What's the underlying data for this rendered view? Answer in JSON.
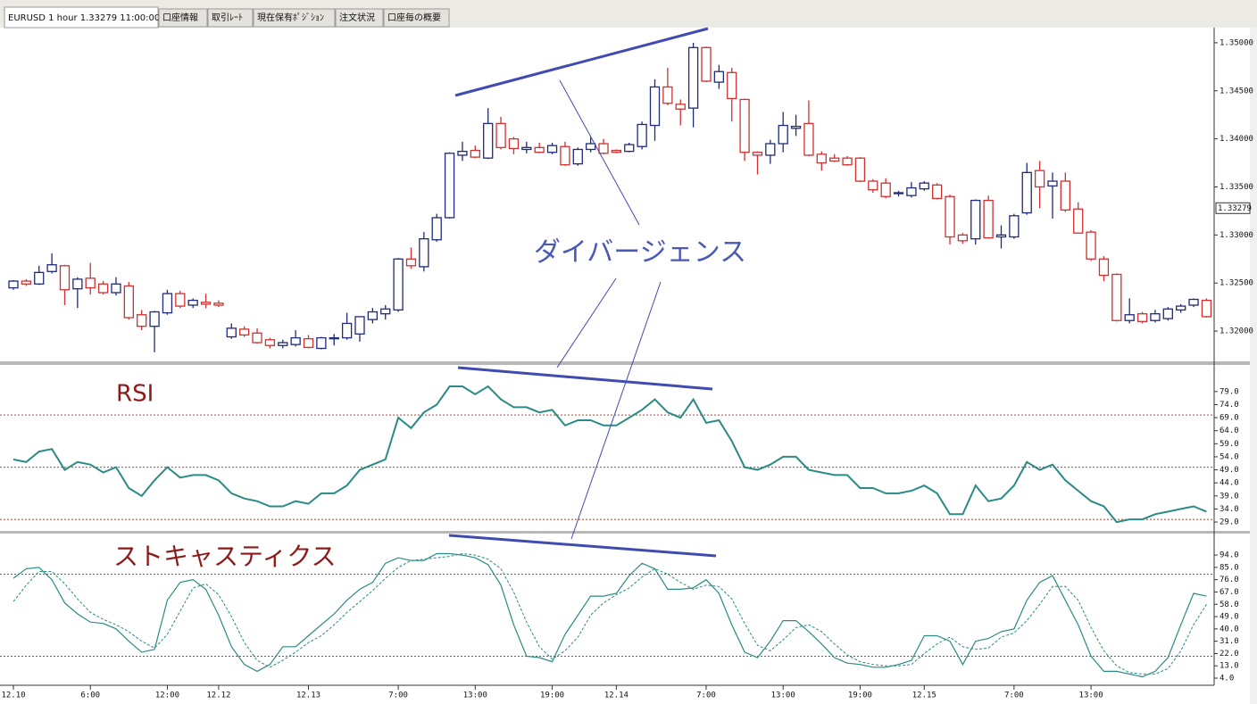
{
  "tabs": [
    "EURUSD 1 hour 1.33279 11:00:00",
    "口座情報",
    "取引ﾚｰﾄ",
    "現在保有ﾎﾟｼﾞｼｮﾝ",
    "注文状況",
    "口座毎の概要"
  ],
  "chart_data": [
    {
      "type": "candlestick",
      "annotation": "ダイバージェンス",
      "up_color": "#1f2a7a",
      "down_color": "#d03030",
      "last_price": 1.33279,
      "ylim": [
        1.31685,
        1.35157
      ],
      "yticks": [
        {
          "value": 1.35,
          "label": "1.35000"
        },
        {
          "value": 1.345,
          "label": "1.34500"
        },
        {
          "value": 1.34,
          "label": "1.34000"
        },
        {
          "value": 1.335,
          "label": "1.33500"
        },
        {
          "value": 1.33,
          "label": "1.33000"
        },
        {
          "value": 1.325,
          "label": "1.32500"
        },
        {
          "value": 1.32,
          "label": "1.32000"
        }
      ],
      "open": [
        1.3245,
        1.3252,
        1.3249,
        1.3262,
        1.3268,
        1.3244,
        1.3255,
        1.3249,
        1.324,
        1.3247,
        1.3217,
        1.3205,
        1.3219,
        1.3239,
        1.3227,
        1.323,
        1.3229,
        1.3194,
        1.3202,
        1.3198,
        1.3191,
        1.3185,
        1.3186,
        1.3192,
        1.3182,
        1.3192,
        1.3193,
        1.3197,
        1.3212,
        1.3218,
        1.3222,
        1.3275,
        1.3267,
        1.3295,
        1.3318,
        1.3383,
        1.3388,
        1.338,
        1.3416,
        1.34,
        1.3389,
        1.3391,
        1.3386,
        1.3392,
        1.3374,
        1.3389,
        1.3395,
        1.3388,
        1.3387,
        1.3392,
        1.3414,
        1.3454,
        1.3436,
        1.3432,
        1.3495,
        1.3459,
        1.3469,
        1.3441,
        1.3386,
        1.3383,
        1.3395,
        1.3411,
        1.3416,
        1.3384,
        1.338,
        1.338,
        1.338,
        1.3356,
        1.3354,
        1.3343,
        1.3341,
        1.3348,
        1.3352,
        1.334,
        1.33,
        1.3296,
        1.3336,
        1.3298,
        1.3298,
        1.3323,
        1.3367,
        1.3351,
        1.3356,
        1.3327,
        1.3303,
        1.3275,
        1.3259,
        1.3211,
        1.3218,
        1.3211,
        1.3213,
        1.3222,
        1.3227,
        1.3232
      ],
      "high": [
        1.3253,
        1.3254,
        1.3268,
        1.3281,
        1.3269,
        1.3256,
        1.3271,
        1.3252,
        1.3256,
        1.3251,
        1.3222,
        1.3221,
        1.3243,
        1.3242,
        1.3234,
        1.3239,
        1.3232,
        1.3208,
        1.3205,
        1.3203,
        1.3193,
        1.3191,
        1.3201,
        1.3196,
        1.3194,
        1.3197,
        1.3219,
        1.3215,
        1.3224,
        1.3227,
        1.3276,
        1.3287,
        1.3303,
        1.3322,
        1.3386,
        1.3397,
        1.3393,
        1.3432,
        1.3423,
        1.3402,
        1.3397,
        1.3396,
        1.3396,
        1.3397,
        1.3391,
        1.3402,
        1.34,
        1.3389,
        1.3396,
        1.3418,
        1.3462,
        1.3474,
        1.3441,
        1.35,
        1.3496,
        1.3477,
        1.3474,
        1.3442,
        1.3387,
        1.3399,
        1.3428,
        1.3425,
        1.344,
        1.3387,
        1.3384,
        1.3382,
        1.3381,
        1.3358,
        1.3359,
        1.3346,
        1.3355,
        1.3356,
        1.3354,
        1.3342,
        1.3302,
        1.3337,
        1.3341,
        1.331,
        1.3322,
        1.3375,
        1.3377,
        1.3365,
        1.3365,
        1.3334,
        1.3305,
        1.3278,
        1.326,
        1.3234,
        1.322,
        1.3222,
        1.3225,
        1.3228,
        1.3234,
        1.3234
      ],
      "low": [
        1.3243,
        1.3247,
        1.3248,
        1.326,
        1.3227,
        1.3224,
        1.3238,
        1.3238,
        1.3237,
        1.3212,
        1.3201,
        1.3178,
        1.3217,
        1.3224,
        1.3224,
        1.3224,
        1.3225,
        1.3192,
        1.3194,
        1.3187,
        1.3182,
        1.3182,
        1.3184,
        1.3182,
        1.3181,
        1.3185,
        1.3191,
        1.3189,
        1.3208,
        1.3212,
        1.322,
        1.3265,
        1.3262,
        1.3293,
        1.3317,
        1.3377,
        1.338,
        1.3379,
        1.3389,
        1.3384,
        1.3385,
        1.3385,
        1.3384,
        1.3372,
        1.3372,
        1.3386,
        1.3384,
        1.3385,
        1.3386,
        1.3389,
        1.3398,
        1.3435,
        1.3414,
        1.3412,
        1.3459,
        1.3452,
        1.3418,
        1.3377,
        1.3363,
        1.3374,
        1.3386,
        1.3403,
        1.3382,
        1.3367,
        1.3376,
        1.3372,
        1.3355,
        1.3344,
        1.3338,
        1.334,
        1.3339,
        1.3346,
        1.3337,
        1.329,
        1.3291,
        1.329,
        1.3296,
        1.3286,
        1.3296,
        1.3321,
        1.3328,
        1.3317,
        1.3324,
        1.3302,
        1.3273,
        1.3252,
        1.321,
        1.3208,
        1.3208,
        1.3209,
        1.3211,
        1.3219,
        1.3225,
        1.3214
      ],
      "close": [
        1.3252,
        1.3249,
        1.3261,
        1.3269,
        1.3243,
        1.3254,
        1.3245,
        1.324,
        1.3249,
        1.3214,
        1.3205,
        1.322,
        1.3239,
        1.3226,
        1.3232,
        1.3228,
        1.3227,
        1.3203,
        1.3196,
        1.3188,
        1.3185,
        1.3188,
        1.3193,
        1.3183,
        1.3193,
        1.3193,
        1.3208,
        1.3215,
        1.322,
        1.3223,
        1.3275,
        1.3268,
        1.3296,
        1.3318,
        1.3385,
        1.3387,
        1.3381,
        1.3416,
        1.3391,
        1.339,
        1.3391,
        1.3386,
        1.3393,
        1.3373,
        1.3389,
        1.3395,
        1.3385,
        1.3386,
        1.3394,
        1.3415,
        1.3454,
        1.3437,
        1.3431,
        1.3495,
        1.346,
        1.347,
        1.3442,
        1.3386,
        1.3383,
        1.3395,
        1.3414,
        1.3413,
        1.3383,
        1.3375,
        1.3377,
        1.3373,
        1.3356,
        1.3347,
        1.334,
        1.3344,
        1.3349,
        1.3354,
        1.3338,
        1.3298,
        1.3294,
        1.3336,
        1.3297,
        1.33,
        1.332,
        1.3365,
        1.335,
        1.3356,
        1.3326,
        1.3302,
        1.3275,
        1.3258,
        1.3211,
        1.3217,
        1.321,
        1.3218,
        1.3223,
        1.3226,
        1.3233,
        1.3215
      ]
    },
    {
      "type": "line",
      "title": "RSI",
      "ylim": [
        25.6,
        89.2
      ],
      "levels": [
        70,
        50,
        30
      ],
      "level_color": "#c0392b",
      "yticks": [
        {
          "value": 79,
          "label": "79.0"
        },
        {
          "value": 74,
          "label": "74.0"
        },
        {
          "value": 69,
          "label": "69.0"
        },
        {
          "value": 64,
          "label": "64.0"
        },
        {
          "value": 59,
          "label": "59.0"
        },
        {
          "value": 54,
          "label": "54.0"
        },
        {
          "value": 49,
          "label": "49.0"
        },
        {
          "value": 44,
          "label": "44.0"
        },
        {
          "value": 39,
          "label": "39.0"
        },
        {
          "value": 34,
          "label": "34.0"
        },
        {
          "value": 29,
          "label": "29.0"
        }
      ],
      "series": [
        {
          "color": "#2a8a84",
          "width": 2,
          "dashed": false,
          "values": [
            53,
            52,
            56,
            57,
            49,
            52,
            51,
            48,
            50,
            42,
            39,
            45,
            50,
            46,
            47,
            47,
            45,
            40,
            38,
            37,
            35,
            35,
            37,
            36,
            40,
            40,
            43,
            49,
            51,
            53,
            69,
            65,
            71,
            74,
            81,
            81,
            78,
            81,
            76,
            73,
            73,
            71,
            72,
            66,
            68,
            68,
            66,
            66,
            69,
            72,
            76,
            71,
            69,
            76,
            67,
            68,
            60,
            50,
            49,
            51,
            54,
            54,
            49,
            48,
            47,
            47,
            42,
            42,
            40,
            40,
            41,
            43,
            40,
            32,
            32,
            43,
            37,
            38,
            43,
            52,
            49,
            51,
            45,
            41,
            37,
            35,
            29,
            30,
            30,
            32,
            33,
            34,
            35,
            33
          ]
        }
      ]
    },
    {
      "type": "line",
      "title": "ストキャスティクス",
      "ylim": [
        -1.2,
        109.7
      ],
      "levels": [
        80,
        20
      ],
      "level_color": "#c0392b",
      "yticks": [
        {
          "value": 94,
          "label": "94.0"
        },
        {
          "value": 85,
          "label": "85.0"
        },
        {
          "value": 76,
          "label": "76.0"
        },
        {
          "value": 67,
          "label": "67.0"
        },
        {
          "value": 58,
          "label": "58.0"
        },
        {
          "value": 49,
          "label": "49.0"
        },
        {
          "value": 40,
          "label": "40.0"
        },
        {
          "value": 31,
          "label": "31.0"
        },
        {
          "value": 22,
          "label": "22.0"
        },
        {
          "value": 13,
          "label": "13.0"
        },
        {
          "value": 4,
          "label": "4.0"
        }
      ],
      "categories": [
        "12.10",
        null,
        null,
        null,
        null,
        null,
        "6:00",
        null,
        null,
        null,
        null,
        null,
        "12:00",
        null,
        null,
        null,
        "12.12",
        null,
        null,
        null,
        null,
        null,
        null,
        "12.13",
        null,
        null,
        null,
        null,
        null,
        null,
        "7:00",
        null,
        null,
        null,
        null,
        null,
        "13:00",
        null,
        null,
        null,
        null,
        null,
        "19:00",
        null,
        null,
        null,
        null,
        "12.14",
        null,
        null,
        null,
        null,
        null,
        null,
        "7:00",
        null,
        null,
        null,
        null,
        null,
        "13:00",
        null,
        null,
        null,
        null,
        null,
        "19:00",
        null,
        null,
        null,
        null,
        "12.15",
        null,
        null,
        null,
        null,
        null,
        null,
        "7:00",
        null,
        null,
        null,
        null,
        null,
        "13:00",
        null,
        null,
        null,
        null,
        null,
        null,
        null,
        null,
        null
      ],
      "series": [
        {
          "color": "#2a8a84",
          "width": 1.2,
          "dashed": false,
          "values": [
            77,
            84,
            85,
            76,
            59,
            51,
            45,
            44,
            40,
            31,
            23,
            25,
            61,
            74,
            76,
            69,
            50,
            27,
            14,
            9,
            14,
            27,
            27,
            35,
            43,
            51,
            61,
            69,
            74,
            88,
            92,
            90,
            90,
            95,
            95,
            94,
            92,
            87,
            72,
            43,
            20,
            19,
            16,
            36,
            50,
            64,
            64,
            66,
            79,
            88,
            84,
            69,
            69,
            70,
            76,
            66,
            43,
            23,
            19,
            31,
            46,
            46,
            38,
            29,
            19,
            15,
            14,
            12,
            12,
            14,
            17,
            35,
            35,
            31,
            14,
            31,
            33,
            38,
            40,
            61,
            74,
            79,
            61,
            43,
            20,
            9,
            9,
            7,
            5,
            9,
            19,
            43,
            66,
            64
          ]
        },
        {
          "color": "#2a8a84",
          "width": 1,
          "dashed": true,
          "values": [
            60,
            72,
            82,
            82,
            73,
            62,
            52,
            47,
            43,
            38,
            31,
            26,
            36,
            53,
            70,
            73,
            65,
            49,
            30,
            17,
            12,
            17,
            23,
            30,
            35,
            43,
            52,
            60,
            68,
            77,
            85,
            90,
            91,
            92,
            93,
            95,
            94,
            91,
            84,
            67,
            45,
            27,
            18,
            24,
            34,
            50,
            59,
            65,
            70,
            78,
            84,
            80,
            74,
            69,
            72,
            71,
            62,
            44,
            28,
            24,
            32,
            41,
            43,
            38,
            29,
            21,
            16,
            14,
            13,
            13,
            14,
            22,
            29,
            34,
            27,
            25,
            26,
            34,
            37,
            46,
            58,
            71,
            71,
            61,
            41,
            24,
            13,
            8,
            7,
            7,
            11,
            24,
            43,
            58
          ]
        }
      ]
    }
  ]
}
